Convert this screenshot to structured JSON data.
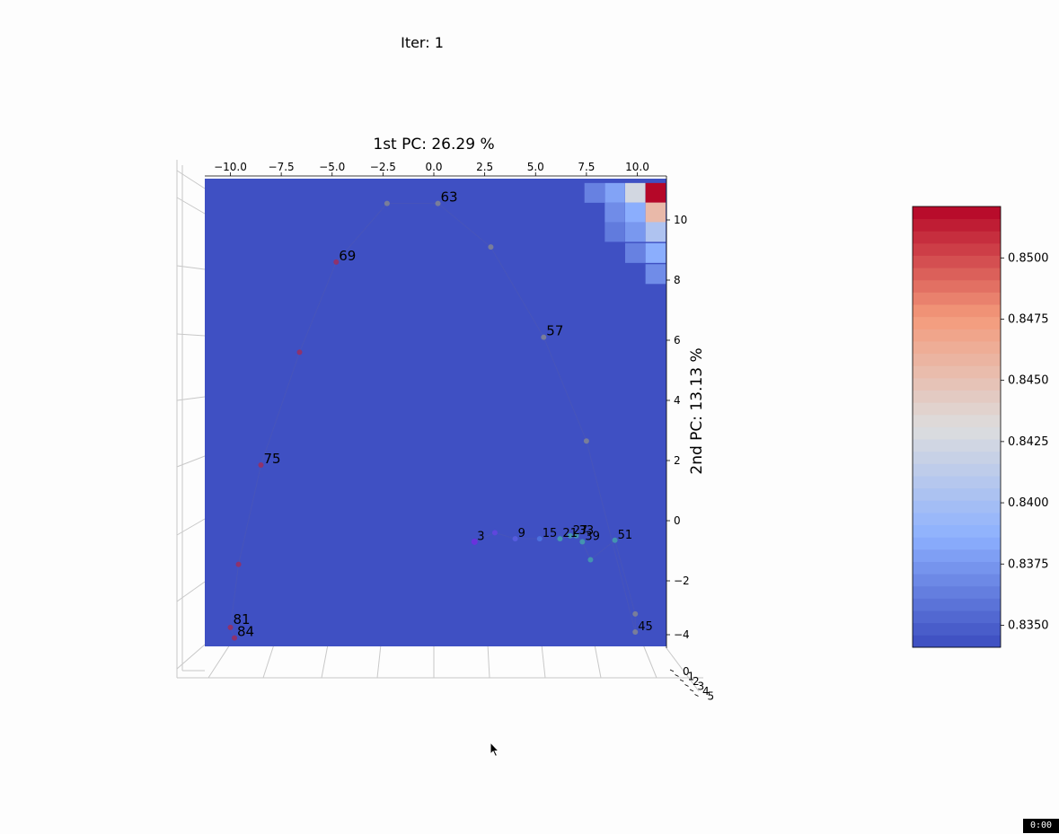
{
  "iter_label": "Iter: 1",
  "timer": "0:00",
  "chart_data": {
    "type": "surface-3d-topview",
    "title": "1st PC: 26.29 %",
    "xlabel": "1st PC: 26.29 %",
    "ylabel": "2nd PC: 13.13 %",
    "xlim": [
      -11.4,
      11.4
    ],
    "ylim": [
      -4.2,
      11.2
    ],
    "x_ticks": [
      -10,
      -7.5,
      -5,
      -2.5,
      0,
      2.5,
      5,
      7.5,
      10
    ],
    "x_tick_labels": [
      "−10.0",
      "−7.5",
      "−5.0",
      "−2.5",
      "0.0",
      "2.5",
      "5.0",
      "7.5",
      "10.0"
    ],
    "y_ticks": [
      -4,
      -2,
      0,
      2,
      4,
      6,
      8,
      10
    ],
    "y_tick_labels": [
      "−4",
      "−2",
      "0",
      "2",
      "4",
      "6",
      "8",
      "10"
    ],
    "z_tick_labels": [
      "0",
      "1",
      "2",
      "3",
      "4",
      "5"
    ],
    "colormap": "coolwarm",
    "colorbar": {
      "min": 0.8341,
      "max": 0.8521,
      "ticks": [
        0.835,
        0.8375,
        0.84,
        0.8425,
        0.845,
        0.8475,
        0.85
      ],
      "tick_labels": [
        "0.8350",
        "0.8375",
        "0.8400",
        "0.8425",
        "0.8450",
        "0.8475",
        "0.8500"
      ]
    },
    "surface_high_corner": {
      "cells": [
        {
          "x": 10.9,
          "y": 10.9,
          "value": 0.852
        },
        {
          "x": 9.9,
          "y": 10.9,
          "value": 0.8425
        },
        {
          "x": 10.9,
          "y": 10.25,
          "value": 0.8455
        },
        {
          "x": 8.9,
          "y": 10.9,
          "value": 0.838
        },
        {
          "x": 9.9,
          "y": 10.25,
          "value": 0.8385
        },
        {
          "x": 10.9,
          "y": 9.6,
          "value": 0.8405
        },
        {
          "x": 7.9,
          "y": 10.9,
          "value": 0.8365
        },
        {
          "x": 8.9,
          "y": 10.25,
          "value": 0.837
        },
        {
          "x": 9.9,
          "y": 9.6,
          "value": 0.8375
        },
        {
          "x": 10.9,
          "y": 8.9,
          "value": 0.8385
        },
        {
          "x": 8.9,
          "y": 9.6,
          "value": 0.8362
        },
        {
          "x": 9.9,
          "y": 8.9,
          "value": 0.8365
        },
        {
          "x": 10.9,
          "y": 8.2,
          "value": 0.837
        }
      ],
      "base_value": 0.8343
    },
    "trajectory": [
      {
        "x": 2.0,
        "y": -0.7,
        "label": "3"
      },
      {
        "x": 3.0,
        "y": -0.4,
        "label": ""
      },
      {
        "x": 4.0,
        "y": -0.6,
        "label": "9"
      },
      {
        "x": 5.2,
        "y": -0.6,
        "label": "15"
      },
      {
        "x": 6.2,
        "y": -0.6,
        "label": "21"
      },
      {
        "x": 6.7,
        "y": -0.5,
        "label": "27"
      },
      {
        "x": 7.0,
        "y": -0.5,
        "label": "33"
      },
      {
        "x": 7.3,
        "y": -0.7,
        "label": "39"
      },
      {
        "x": 7.7,
        "y": -1.3,
        "label": ""
      },
      {
        "x": 8.9,
        "y": -0.65,
        "label": "51"
      },
      {
        "x": 9.9,
        "y": -3.1,
        "label": ""
      },
      {
        "x": 9.9,
        "y": -3.7,
        "label": "45"
      },
      {
        "x": 7.5,
        "y": 2.65,
        "label": ""
      },
      {
        "x": 5.4,
        "y": 6.1,
        "label": "57"
      },
      {
        "x": 2.8,
        "y": 9.1,
        "label": ""
      },
      {
        "x": 0.2,
        "y": 10.55,
        "label": "63"
      },
      {
        "x": -2.3,
        "y": 10.55,
        "label": ""
      },
      {
        "x": -4.8,
        "y": 8.6,
        "label": "69"
      },
      {
        "x": -6.6,
        "y": 5.6,
        "label": ""
      },
      {
        "x": -8.5,
        "y": 1.85,
        "label": "75"
      },
      {
        "x": -9.6,
        "y": -1.45,
        "label": ""
      },
      {
        "x": -10.0,
        "y": -3.55,
        "label": "81"
      },
      {
        "x": -9.8,
        "y": -3.9,
        "label": "84"
      }
    ]
  }
}
